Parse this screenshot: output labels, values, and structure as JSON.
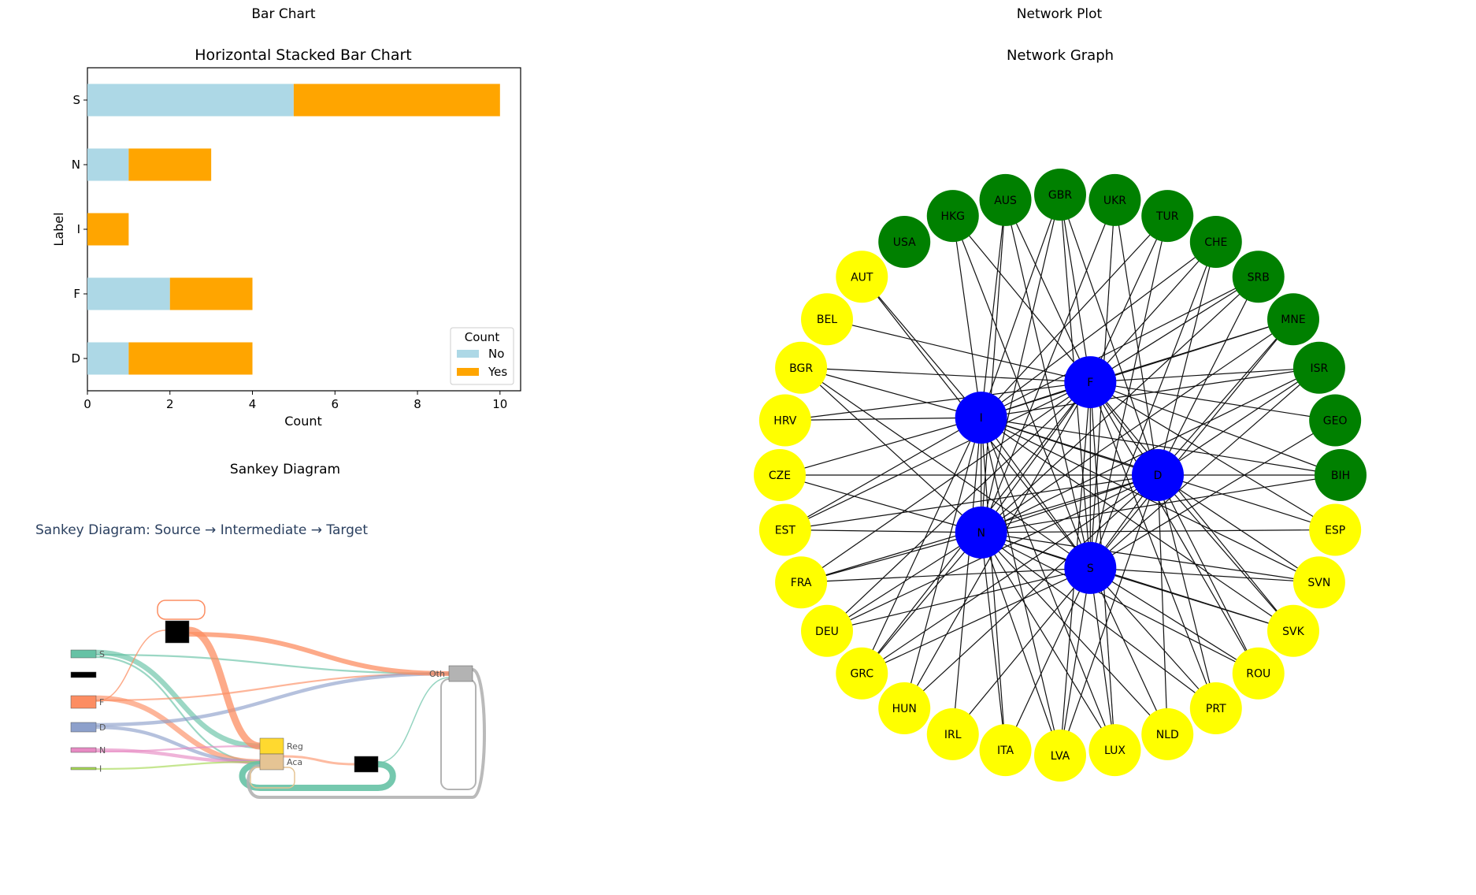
{
  "panels": {
    "bar_title": "Bar Chart",
    "sankey_title": "Sankey Diagram",
    "network_title": "Network Plot"
  },
  "colors": {
    "no": "#add8e6",
    "yes": "#ffa500",
    "country_green": "#008000",
    "country_yellow": "#ffff00",
    "hub_blue": "#0000ff",
    "sankey_title": "#2a3f5f"
  },
  "chart_data": [
    {
      "type": "bar",
      "orientation": "horizontal",
      "stacked": true,
      "title": "Horizontal Stacked Bar Chart",
      "xlabel": "Count",
      "ylabel": "Label",
      "categories": [
        "D",
        "F",
        "I",
        "N",
        "S"
      ],
      "series": [
        {
          "name": "No",
          "values": [
            1,
            2,
            0,
            1,
            5
          ]
        },
        {
          "name": "Yes",
          "values": [
            3,
            2,
            1,
            2,
            5
          ]
        }
      ],
      "xlim": [
        0,
        10.5
      ],
      "xticks": [
        "0",
        "2",
        "4",
        "6",
        "8",
        "10"
      ],
      "legend_title": "Count",
      "legend_position": "lower-right"
    },
    {
      "type": "sankey",
      "title": "Sankey Diagram: Source → Intermediate → Target",
      "nodes": [
        "S",
        "",
        "F",
        "D",
        "N",
        "I",
        "",
        "Reg",
        "Aca",
        "",
        "Oth"
      ],
      "flows": [
        {
          "source": "S",
          "target": "Reg",
          "value": 3
        },
        {
          "source": "S",
          "target": "Oth",
          "value": 1
        },
        {
          "source": "S",
          "target": "Aca",
          "value": 1
        },
        {
          "source": "F",
          "target": "Aca",
          "value": 3
        },
        {
          "source": "F",
          "target": "Oth",
          "value": 1
        },
        {
          "source": "D",
          "target": "Oth",
          "value": 2
        },
        {
          "source": "D",
          "target": "Aca",
          "value": 2
        },
        {
          "source": "N",
          "target": "Aca",
          "value": 2
        },
        {
          "source": "N",
          "target": "Reg",
          "value": 1
        },
        {
          "source": "I",
          "target": "Aca",
          "value": 1
        }
      ]
    },
    {
      "type": "network",
      "title": "Network Graph",
      "hubs": [
        "F",
        "I",
        "D",
        "N",
        "S"
      ],
      "ring_nodes": [
        {
          "name": "BIH",
          "group": "green"
        },
        {
          "name": "GEO",
          "group": "green"
        },
        {
          "name": "ISR",
          "group": "green"
        },
        {
          "name": "MNE",
          "group": "green"
        },
        {
          "name": "SRB",
          "group": "green"
        },
        {
          "name": "CHE",
          "group": "green"
        },
        {
          "name": "TUR",
          "group": "green"
        },
        {
          "name": "UKR",
          "group": "green"
        },
        {
          "name": "GBR",
          "group": "green"
        },
        {
          "name": "AUS",
          "group": "green"
        },
        {
          "name": "HKG",
          "group": "green"
        },
        {
          "name": "USA",
          "group": "green"
        },
        {
          "name": "AUT",
          "group": "yellow"
        },
        {
          "name": "BEL",
          "group": "yellow"
        },
        {
          "name": "BGR",
          "group": "yellow"
        },
        {
          "name": "HRV",
          "group": "yellow"
        },
        {
          "name": "CZE",
          "group": "yellow"
        },
        {
          "name": "EST",
          "group": "yellow"
        },
        {
          "name": "FRA",
          "group": "yellow"
        },
        {
          "name": "DEU",
          "group": "yellow"
        },
        {
          "name": "GRC",
          "group": "yellow"
        },
        {
          "name": "HUN",
          "group": "yellow"
        },
        {
          "name": "IRL",
          "group": "yellow"
        },
        {
          "name": "ITA",
          "group": "yellow"
        },
        {
          "name": "LVA",
          "group": "yellow"
        },
        {
          "name": "LUX",
          "group": "yellow"
        },
        {
          "name": "NLD",
          "group": "yellow"
        },
        {
          "name": "PRT",
          "group": "yellow"
        },
        {
          "name": "ROU",
          "group": "yellow"
        },
        {
          "name": "SVK",
          "group": "yellow"
        },
        {
          "name": "SVN",
          "group": "yellow"
        },
        {
          "name": "ESP",
          "group": "yellow"
        }
      ]
    }
  ]
}
